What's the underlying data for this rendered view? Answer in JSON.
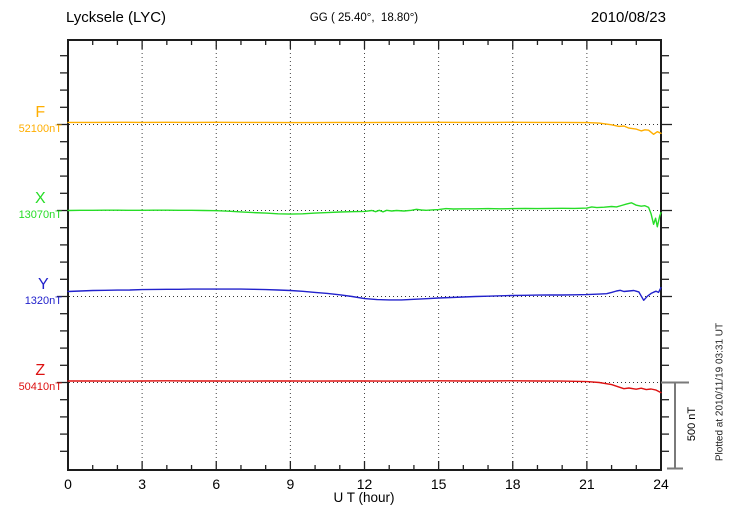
{
  "header": {
    "station": "Lycksele (LYC)",
    "coordinates": "GG ( 25.40°,  18.80°)",
    "date": "2010/08/23"
  },
  "side": {
    "scale_label": "500 nT",
    "plotted_at": "Plotted at 2010/11/19 03:31 UT"
  },
  "chart_data": {
    "type": "line",
    "xlabel": "U T (hour)",
    "x_range": [
      0,
      24
    ],
    "x_major_ticks": [
      0,
      3,
      6,
      9,
      12,
      15,
      18,
      21,
      24
    ],
    "x_minor_tick_step": 1,
    "grid": "vertical dotted lines at 3-hour marks; dotted horizontal baseline for each trace",
    "scale_bar_nT": 500,
    "y_minor_tick_nT": 100,
    "series": [
      {
        "name": "F",
        "baseline_label": "52100nT",
        "baseline_nT": 52100,
        "color": "#FFAE00",
        "points": [
          [
            0,
            52112
          ],
          [
            1,
            52112
          ],
          [
            2,
            52113
          ],
          [
            3,
            52112
          ],
          [
            4,
            52113
          ],
          [
            5,
            52112
          ],
          [
            6,
            52113
          ],
          [
            7,
            52112
          ],
          [
            8,
            52112
          ],
          [
            9,
            52111
          ],
          [
            10,
            52111
          ],
          [
            11,
            52112
          ],
          [
            12,
            52111
          ],
          [
            13,
            52112
          ],
          [
            14,
            52112
          ],
          [
            15,
            52113
          ],
          [
            16,
            52112
          ],
          [
            17,
            52112
          ],
          [
            18,
            52113
          ],
          [
            19,
            52112
          ],
          [
            20,
            52112
          ],
          [
            21,
            52111
          ],
          [
            21.5,
            52108
          ],
          [
            22,
            52098
          ],
          [
            22.3,
            52089
          ],
          [
            22.5,
            52091
          ],
          [
            22.7,
            52079
          ],
          [
            23,
            52073
          ],
          [
            23.2,
            52063
          ],
          [
            23.35,
            52069
          ],
          [
            23.5,
            52067
          ],
          [
            23.7,
            52043
          ],
          [
            23.85,
            52058
          ],
          [
            24,
            52049
          ]
        ]
      },
      {
        "name": "X",
        "baseline_label": "13070nT",
        "baseline_nT": 13070,
        "color": "#27DD27",
        "points": [
          [
            0,
            13070
          ],
          [
            0.5,
            13071
          ],
          [
            1,
            13071
          ],
          [
            1.5,
            13072
          ],
          [
            2,
            13072
          ],
          [
            2.5,
            13071
          ],
          [
            3,
            13071
          ],
          [
            3.5,
            13072
          ],
          [
            4,
            13072
          ],
          [
            4.5,
            13071
          ],
          [
            5,
            13071
          ],
          [
            5.5,
            13070
          ],
          [
            6,
            13069
          ],
          [
            6.5,
            13066
          ],
          [
            7,
            13062
          ],
          [
            7.5,
            13058
          ],
          [
            8,
            13055
          ],
          [
            8.5,
            13051
          ],
          [
            9,
            13049
          ],
          [
            9.5,
            13051
          ],
          [
            10,
            13055
          ],
          [
            10.5,
            13058
          ],
          [
            11,
            13061
          ],
          [
            11.5,
            13063
          ],
          [
            12,
            13065
          ],
          [
            12.3,
            13070
          ],
          [
            12.45,
            13063
          ],
          [
            12.6,
            13071
          ],
          [
            12.75,
            13062
          ],
          [
            12.9,
            13071
          ],
          [
            13.1,
            13067
          ],
          [
            13.3,
            13070
          ],
          [
            13.6,
            13067
          ],
          [
            13.9,
            13071
          ],
          [
            14.1,
            13077
          ],
          [
            14.3,
            13073
          ],
          [
            14.5,
            13071
          ],
          [
            14.8,
            13074
          ],
          [
            15,
            13075
          ],
          [
            15.3,
            13081
          ],
          [
            15.6,
            13079
          ],
          [
            16,
            13080
          ],
          [
            16.5,
            13080
          ],
          [
            17,
            13081
          ],
          [
            17.5,
            13080
          ],
          [
            18,
            13081
          ],
          [
            18.5,
            13082
          ],
          [
            19,
            13081
          ],
          [
            19.5,
            13082
          ],
          [
            20,
            13083
          ],
          [
            20.5,
            13082
          ],
          [
            21,
            13084
          ],
          [
            21.2,
            13091
          ],
          [
            21.4,
            13087
          ],
          [
            21.7,
            13089
          ],
          [
            22,
            13093
          ],
          [
            22.2,
            13091
          ],
          [
            22.4,
            13099
          ],
          [
            22.6,
            13107
          ],
          [
            22.8,
            13115
          ],
          [
            23,
            13101
          ],
          [
            23.2,
            13095
          ],
          [
            23.35,
            13098
          ],
          [
            23.5,
            13088
          ],
          [
            23.6,
            13050
          ],
          [
            23.7,
            12990
          ],
          [
            23.78,
            13025
          ],
          [
            23.85,
            12975
          ],
          [
            23.95,
            13040
          ],
          [
            24,
            13058
          ]
        ]
      },
      {
        "name": "Y",
        "baseline_label": "1320nT",
        "baseline_nT": 1320,
        "color": "#2222CC",
        "points": [
          [
            0,
            1349
          ],
          [
            0.5,
            1352
          ],
          [
            1,
            1355
          ],
          [
            1.5,
            1356
          ],
          [
            2,
            1357
          ],
          [
            2.5,
            1358
          ],
          [
            3,
            1360
          ],
          [
            3.5,
            1361
          ],
          [
            4,
            1362
          ],
          [
            4.5,
            1362
          ],
          [
            5,
            1363
          ],
          [
            5.5,
            1363
          ],
          [
            6,
            1363
          ],
          [
            6.5,
            1363
          ],
          [
            7,
            1363
          ],
          [
            7.5,
            1362
          ],
          [
            8,
            1360
          ],
          [
            8.5,
            1358
          ],
          [
            9,
            1355
          ],
          [
            9.5,
            1350
          ],
          [
            10,
            1344
          ],
          [
            10.5,
            1338
          ],
          [
            11,
            1330
          ],
          [
            11.5,
            1320
          ],
          [
            12,
            1308
          ],
          [
            12.5,
            1302
          ],
          [
            13,
            1300
          ],
          [
            13.5,
            1300
          ],
          [
            14,
            1304
          ],
          [
            14.5,
            1307
          ],
          [
            15,
            1311
          ],
          [
            15.5,
            1314
          ],
          [
            16,
            1317
          ],
          [
            16.5,
            1320
          ],
          [
            17,
            1322
          ],
          [
            17.5,
            1324
          ],
          [
            18,
            1326
          ],
          [
            18.5,
            1327
          ],
          [
            19,
            1328
          ],
          [
            19.5,
            1329
          ],
          [
            20,
            1329
          ],
          [
            20.5,
            1330
          ],
          [
            21,
            1331
          ],
          [
            21.5,
            1334
          ],
          [
            21.8,
            1336
          ],
          [
            22,
            1344
          ],
          [
            22.2,
            1352
          ],
          [
            22.35,
            1356
          ],
          [
            22.5,
            1349
          ],
          [
            22.7,
            1352
          ],
          [
            22.9,
            1355
          ],
          [
            23.1,
            1347
          ],
          [
            23.3,
            1298
          ],
          [
            23.45,
            1322
          ],
          [
            23.6,
            1338
          ],
          [
            23.7,
            1345
          ],
          [
            23.8,
            1351
          ],
          [
            23.9,
            1344
          ],
          [
            24,
            1372
          ]
        ]
      },
      {
        "name": "Z",
        "baseline_label": "50410nT",
        "baseline_nT": 50410,
        "color": "#DD1111",
        "points": [
          [
            0,
            50419
          ],
          [
            1,
            50419
          ],
          [
            2,
            50418
          ],
          [
            3,
            50419
          ],
          [
            4,
            50420
          ],
          [
            5,
            50419
          ],
          [
            6,
            50419
          ],
          [
            7,
            50418
          ],
          [
            8,
            50419
          ],
          [
            9,
            50419
          ],
          [
            10,
            50418
          ],
          [
            11,
            50419
          ],
          [
            12,
            50419
          ],
          [
            13,
            50418
          ],
          [
            14,
            50419
          ],
          [
            15,
            50420
          ],
          [
            16,
            50419
          ],
          [
            17,
            50419
          ],
          [
            18,
            50420
          ],
          [
            19,
            50419
          ],
          [
            20,
            50418
          ],
          [
            20.5,
            50417
          ],
          [
            21,
            50415
          ],
          [
            21.5,
            50410
          ],
          [
            22,
            50398
          ],
          [
            22.3,
            50383
          ],
          [
            22.5,
            50374
          ],
          [
            22.7,
            50378
          ],
          [
            23,
            50371
          ],
          [
            23.2,
            50377
          ],
          [
            23.4,
            50369
          ],
          [
            23.6,
            50372
          ],
          [
            23.8,
            50366
          ],
          [
            24,
            50351
          ]
        ]
      }
    ]
  }
}
